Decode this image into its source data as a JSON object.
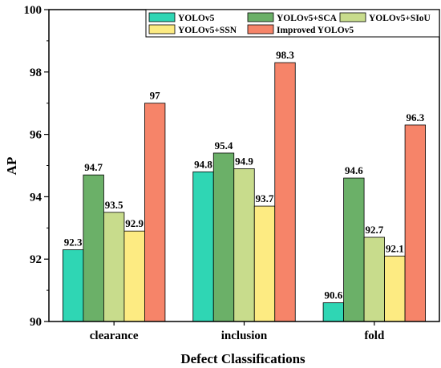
{
  "chart_data": {
    "type": "bar",
    "xlabel": "Defect Classifications",
    "ylabel": "AP",
    "ylim": [
      90,
      100
    ],
    "yticks": [
      90,
      92,
      94,
      96,
      98,
      100
    ],
    "categories": [
      "clearance",
      "inclusion",
      "fold"
    ],
    "series": [
      {
        "name": "YOLOv5",
        "color": "#2fd6b4",
        "values": [
          92.3,
          94.8,
          90.6
        ]
      },
      {
        "name": "YOLOv5+SCA",
        "color": "#6bb068",
        "values": [
          94.7,
          95.4,
          94.6
        ]
      },
      {
        "name": "YOLOv5+SIoU",
        "color": "#c8dc8c",
        "values": [
          93.5,
          94.9,
          92.7
        ]
      },
      {
        "name": "YOLOv5+SSN",
        "color": "#fdeb82",
        "values": [
          92.9,
          93.7,
          92.1
        ]
      },
      {
        "name": "Improved YOLOv5",
        "color": "#f68469",
        "values": [
          97,
          98.3,
          96.3
        ]
      }
    ],
    "legend_position": "top",
    "grid": false
  }
}
